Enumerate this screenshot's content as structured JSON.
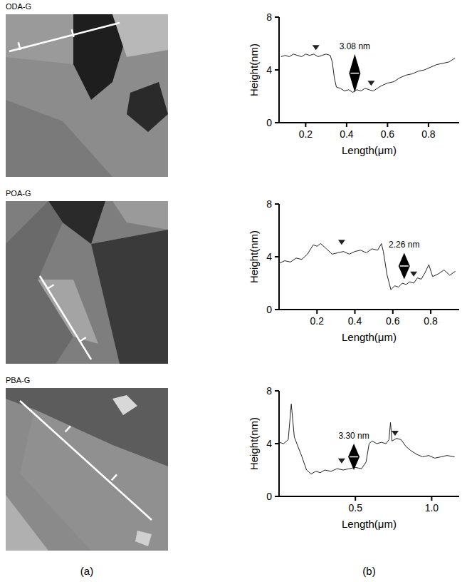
{
  "chart_data": [
    {
      "type": "line",
      "title": "ODA-G",
      "x_label": "Length(μm)",
      "y_label": "Height(nm)",
      "xlim": [
        0.07,
        0.95
      ],
      "xticks": [
        0.2,
        0.4,
        0.6,
        0.8
      ],
      "ylim": [
        0,
        8
      ],
      "yticks": [
        0,
        4,
        8
      ],
      "grid": false,
      "color": "#222222",
      "x": [
        0.08,
        0.1,
        0.12,
        0.14,
        0.16,
        0.18,
        0.2,
        0.22,
        0.24,
        0.26,
        0.28,
        0.3,
        0.32,
        0.33,
        0.34,
        0.35,
        0.37,
        0.39,
        0.41,
        0.43,
        0.45,
        0.47,
        0.49,
        0.51,
        0.53,
        0.55,
        0.57,
        0.6,
        0.63,
        0.66,
        0.69,
        0.72,
        0.75,
        0.78,
        0.81,
        0.84,
        0.87,
        0.9,
        0.93
      ],
      "values": [
        5.0,
        5.1,
        5.0,
        5.2,
        5.1,
        5.0,
        5.2,
        5.1,
        5.2,
        5.0,
        5.1,
        5.2,
        5.1,
        4.6,
        3.4,
        2.7,
        2.6,
        2.4,
        2.5,
        2.3,
        2.5,
        2.4,
        2.6,
        2.5,
        2.4,
        2.6,
        2.8,
        3.0,
        3.1,
        3.4,
        3.6,
        3.7,
        3.9,
        4.0,
        4.2,
        4.4,
        4.5,
        4.6,
        4.9
      ],
      "cursors": {
        "x": [
          0.25,
          0.52
        ],
        "y": [
          5.5,
          2.8
        ]
      },
      "annotation": {
        "text": "3.08 nm",
        "x": 0.44,
        "y_low": 2.3,
        "y_high": 5.2
      }
    },
    {
      "type": "line",
      "title": "POA-G",
      "x_label": "Length(μm)",
      "y_label": "Height(nm)",
      "xlim": [
        0,
        0.95
      ],
      "xticks": [
        0.2,
        0.4,
        0.6,
        0.8
      ],
      "ylim": [
        0,
        8
      ],
      "yticks": [
        0,
        4,
        8
      ],
      "grid": false,
      "color": "#222222",
      "x": [
        0.0,
        0.03,
        0.06,
        0.09,
        0.12,
        0.15,
        0.18,
        0.2,
        0.22,
        0.25,
        0.28,
        0.31,
        0.34,
        0.37,
        0.4,
        0.43,
        0.46,
        0.49,
        0.52,
        0.54,
        0.55,
        0.57,
        0.59,
        0.61,
        0.63,
        0.65,
        0.67,
        0.69,
        0.71,
        0.73,
        0.75,
        0.77,
        0.79,
        0.81,
        0.84,
        0.87,
        0.9,
        0.93
      ],
      "values": [
        3.5,
        3.7,
        3.6,
        3.9,
        3.8,
        4.2,
        4.9,
        4.8,
        5.0,
        4.6,
        4.2,
        4.3,
        4.4,
        4.2,
        4.4,
        4.5,
        4.3,
        4.6,
        4.5,
        5.0,
        4.4,
        2.6,
        1.5,
        1.8,
        1.7,
        2.0,
        1.9,
        2.1,
        2.0,
        2.4,
        2.3,
        2.8,
        3.4,
        2.5,
        2.7,
        3.0,
        2.6,
        2.9
      ],
      "cursors": {
        "x": [
          0.33,
          0.71
        ],
        "y": [
          4.9,
          2.5
        ]
      },
      "annotation": {
        "text": "2.26 nm",
        "x": 0.66,
        "y_low": 2.3,
        "y_high": 4.3
      }
    },
    {
      "type": "line",
      "title": "PBA-G",
      "x_label": "Length(μm)",
      "y_label": "Height(nm)",
      "xlim": [
        0,
        1.18
      ],
      "xticks": [
        0.5,
        {
          "value": 1,
          "label": "1.0"
        }
      ],
      "ylim": [
        0,
        8
      ],
      "yticks": [
        0,
        4,
        8
      ],
      "grid": false,
      "color": "#222222",
      "x": [
        0,
        0.03,
        0.06,
        0.08,
        0.1,
        0.12,
        0.15,
        0.18,
        0.21,
        0.24,
        0.27,
        0.3,
        0.34,
        0.38,
        0.42,
        0.46,
        0.5,
        0.54,
        0.57,
        0.59,
        0.61,
        0.64,
        0.67,
        0.7,
        0.72,
        0.73,
        0.74,
        0.77,
        0.8,
        0.83,
        0.86,
        0.9,
        0.94,
        0.98,
        1.02,
        1.06,
        1.1,
        1.15
      ],
      "values": [
        4.1,
        4.0,
        4.3,
        7.0,
        4.5,
        3.9,
        3.0,
        2.0,
        1.7,
        1.9,
        1.8,
        2.0,
        1.9,
        2.1,
        2.0,
        2.1,
        2.2,
        2.1,
        2.6,
        4.0,
        4.2,
        4.0,
        4.1,
        4.0,
        4.3,
        5.6,
        4.2,
        4.4,
        4.3,
        3.8,
        3.5,
        3.2,
        3.0,
        3.1,
        2.9,
        3.0,
        3.1,
        3.0
      ],
      "cursors": {
        "x": [
          0.41,
          0.76
        ],
        "y": [
          2.5,
          4.6
        ]
      },
      "annotation": {
        "text": "3.30 nm",
        "x": 0.49,
        "y_low": 2.0,
        "y_high": 4.0
      }
    }
  ],
  "panel_labels": [
    "(a)",
    "(b)"
  ]
}
